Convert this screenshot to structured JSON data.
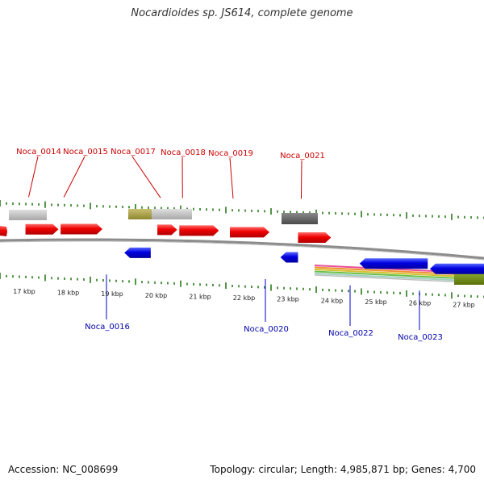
{
  "title": "Nocardioides sp. JS614, complete genome",
  "footer": {
    "accession": "Accession: NC_008699",
    "topology": "Topology: circular",
    "length": "Length: 4,985,871 bp",
    "genes": "Genes: 4,700"
  },
  "colors": {
    "forward_gene": "#ee0000",
    "reverse_gene": "#0000dd",
    "forward_label": "#cc0000",
    "reverse_label": "#0000aa",
    "feature_light_gray": "#c0c0c0",
    "feature_dark_gray": "#606060",
    "feature_olive": "#a8a040",
    "feature_dark_olive": "#6f8a10",
    "gc_tick": "#2a7a1a",
    "backbone": "#888888"
  },
  "kbp_labels": [
    "17 kbp",
    "18 kbp",
    "19 kbp",
    "20 kbp",
    "21 kbp",
    "22 kbp",
    "23 kbp",
    "24 kbp",
    "25 kbp",
    "26 kbp",
    "27 kbp"
  ],
  "forward_genes": [
    {
      "name": "Noca_0014",
      "start_kbp": 16.9,
      "end_kbp": 17.65
    },
    {
      "name": "Noca_0015",
      "start_kbp": 17.7,
      "end_kbp": 18.65
    },
    {
      "name": "Noca_0017",
      "start_kbp": 19.9,
      "end_kbp": 20.35
    },
    {
      "name": "Noca_0018",
      "start_kbp": 20.4,
      "end_kbp": 21.3
    },
    {
      "name": "Noca_0019",
      "start_kbp": 21.55,
      "end_kbp": 22.45
    },
    {
      "name": "Noca_0021",
      "start_kbp": 23.1,
      "end_kbp": 23.85
    }
  ],
  "reverse_genes": [
    {
      "name": "Noca_0016",
      "start_kbp": 19.15,
      "end_kbp": 19.75
    },
    {
      "name": "Noca_0020",
      "start_kbp": 22.7,
      "end_kbp": 23.1
    },
    {
      "name": "Noca_0022",
      "start_kbp": 24.5,
      "end_kbp": 26.05
    },
    {
      "name": "Noca_0023",
      "start_kbp": 26.1,
      "end_kbp": 27.45
    }
  ]
}
